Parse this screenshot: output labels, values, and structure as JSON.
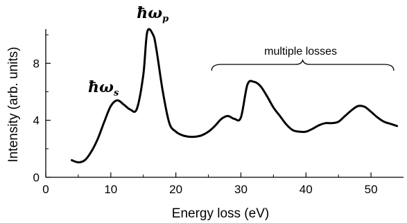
{
  "chart_data": {
    "type": "line",
    "xlabel": "Energy loss (eV)",
    "ylabel": "Intensity (arb. units)",
    "xlim": [
      0,
      55
    ],
    "ylim": [
      0,
      10.4
    ],
    "x_ticks": [
      0,
      10,
      20,
      30,
      40,
      50
    ],
    "y_ticks": [
      0,
      4,
      8
    ],
    "x_tick_labels": [
      "0",
      "10",
      "20",
      "30",
      "40",
      "50"
    ],
    "y_tick_labels": [
      "0",
      "4",
      "8"
    ],
    "grid": false,
    "series": [
      {
        "x": [
          4,
          5,
          6,
          7,
          8,
          9,
          10,
          11,
          12,
          13,
          14,
          15,
          15.6,
          16.5,
          17,
          18,
          19,
          20,
          21,
          22,
          23,
          24,
          25,
          26,
          27,
          28,
          29,
          30,
          31,
          32,
          33,
          34,
          35,
          36,
          37,
          38,
          39,
          40,
          41,
          42,
          43,
          44,
          45,
          46,
          47,
          48,
          49,
          50,
          51,
          52,
          53,
          54
        ],
        "y": [
          1.2,
          1.05,
          1.2,
          1.8,
          2.7,
          3.9,
          5.0,
          5.4,
          5.1,
          4.75,
          4.8,
          7.2,
          10.2,
          10.0,
          9.0,
          6.0,
          3.8,
          3.2,
          2.95,
          2.85,
          2.85,
          2.95,
          3.2,
          3.6,
          4.1,
          4.3,
          4.1,
          4.2,
          6.5,
          6.7,
          6.4,
          5.7,
          4.9,
          4.3,
          3.7,
          3.3,
          3.2,
          3.2,
          3.4,
          3.65,
          3.8,
          3.8,
          3.9,
          4.3,
          4.7,
          5.0,
          4.95,
          4.6,
          4.2,
          3.9,
          3.75,
          3.6
        ]
      }
    ],
    "annotations": [
      {
        "text": "ħω",
        "subscript": "s",
        "x": 10.8
      },
      {
        "text": "ħω",
        "subscript": "p",
        "x": 15.8
      },
      {
        "text": "multiple losses",
        "x_range": [
          25.5,
          53.5
        ]
      }
    ]
  }
}
